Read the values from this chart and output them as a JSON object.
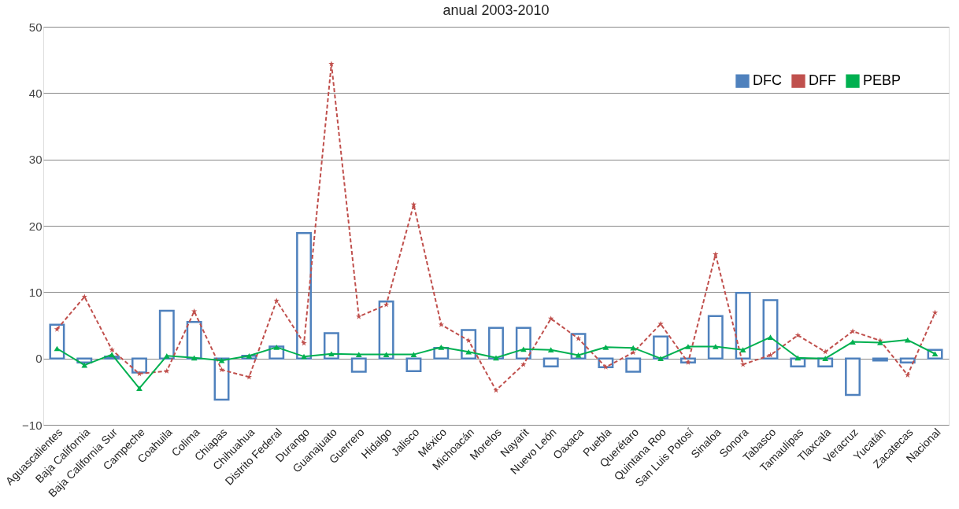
{
  "chart_data": {
    "type": "line",
    "title": "anual 2003-2010",
    "categories": [
      "Aguascalientes",
      "Baja California",
      "Baja California Sur",
      "Campeche",
      "Coahuila",
      "Colima",
      "Chiapas",
      "Chihuahua",
      "Distrito Federal",
      "Durango",
      "Guanajuato",
      "Guerrero",
      "Hidalgo",
      "Jalisco",
      "México",
      "Michoacán",
      "Morelos",
      "Nayarit",
      "Nuevo León",
      "Oaxaca",
      "Puebla",
      "Querétaro",
      "Quintana Roo",
      "San Luis Potosí",
      "Sinaloa",
      "Sonora",
      "Tabasco",
      "Tamaulipas",
      "Tlaxcala",
      "Veracruz",
      "Yucatán",
      "Zacatecas",
      "Nacional"
    ],
    "series": [
      {
        "name": "DFC",
        "type": "bar",
        "color": "#4f81bd",
        "values": [
          5.1,
          -0.6,
          0.3,
          -2.1,
          7.2,
          5.5,
          -6.2,
          0.4,
          1.8,
          18.9,
          3.8,
          -2.0,
          8.6,
          -1.9,
          1.6,
          4.3,
          4.6,
          4.6,
          -1.2,
          3.7,
          -1.3,
          -2.0,
          3.3,
          -0.6,
          6.4,
          9.9,
          8.8,
          -1.2,
          -1.2,
          -5.5,
          -0.3,
          -0.6,
          1.3
        ]
      },
      {
        "name": "DFF",
        "color": "#c0504d",
        "marker": "star",
        "line_style": "dashed",
        "values": [
          4.4,
          9.3,
          1.3,
          -2.3,
          -1.9,
          7.1,
          -1.7,
          -2.8,
          8.7,
          2.3,
          44.4,
          6.3,
          8.1,
          23.2,
          5.1,
          2.7,
          -4.8,
          -0.9,
          6.0,
          3.0,
          -1.3,
          0.9,
          5.2,
          -0.6,
          15.7,
          -0.9,
          0.5,
          3.5,
          1.0,
          4.1,
          2.7,
          -2.5,
          6.9
        ]
      },
      {
        "name": "PEBP",
        "color": "#00b050",
        "marker": "triangle",
        "line_style": "solid",
        "values": [
          1.5,
          -1.0,
          0.6,
          -4.5,
          0.4,
          0.1,
          -0.3,
          0.4,
          1.7,
          0.3,
          0.7,
          0.6,
          0.6,
          0.6,
          1.7,
          1.0,
          0.1,
          1.4,
          1.3,
          0.5,
          1.7,
          1.6,
          0.0,
          1.8,
          1.8,
          1.3,
          3.2,
          0.1,
          0.0,
          2.5,
          2.4,
          2.8,
          0.7
        ]
      }
    ],
    "ylim": [
      -10,
      50
    ],
    "yticks": [
      -10,
      0,
      10,
      20,
      30,
      40,
      50
    ],
    "grid": "y",
    "legend": "top right"
  }
}
